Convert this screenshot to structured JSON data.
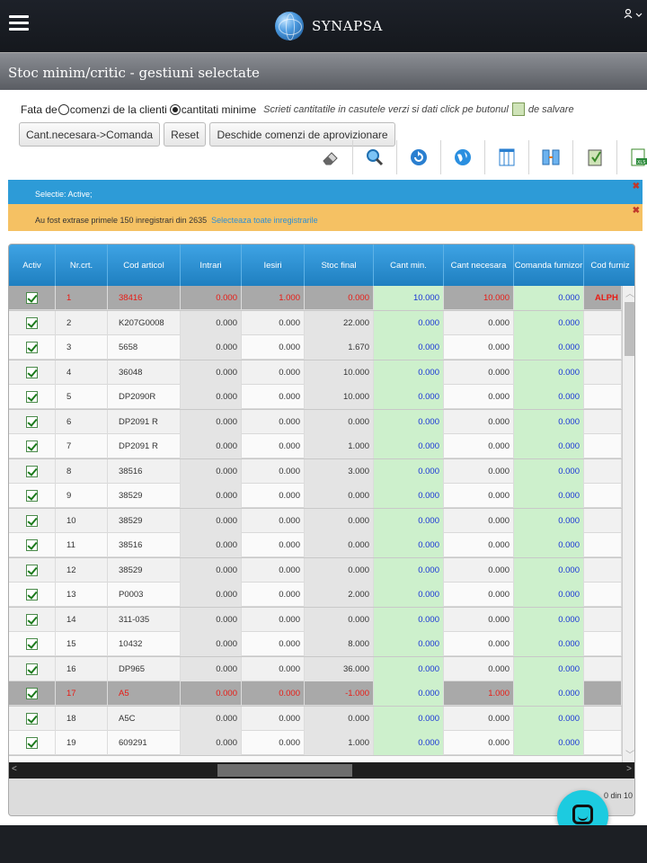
{
  "header": {
    "brand": "SYNAPSA",
    "user_icon": "user-icon",
    "menu_icon": "hamburger-icon"
  },
  "page": {
    "title": "Stoc minim/critic - gestiuni selectate"
  },
  "options": {
    "prefix": "Fata de",
    "radio_clients": "comenzi de la clienti",
    "radio_minimum": "cantitati minime",
    "selected": "cantitati minime",
    "hint_a": "Scrieti cantitatile in casutele verzi si dati click pe butonul",
    "hint_b": "de salvare"
  },
  "buttons": {
    "to_order": "Cant.necesara->Comanda",
    "reset": "Reset",
    "open_orders": "Deschide comenzi de aprovizionare"
  },
  "toolbar": [
    "eraser-icon",
    "search-icon",
    "refresh-icon",
    "globe-icon",
    "columns-icon",
    "split-icon",
    "save-icon",
    "excel-icon"
  ],
  "banners": {
    "selection": "Selectie: Active;",
    "warning": "Au fost extrase primele 150 inregistrari din 2635",
    "select_all": "Selecteaza toate inregistrarile"
  },
  "table": {
    "columns": [
      "Activ",
      "Nr.crt.",
      "Cod articol",
      "Intrari",
      "Iesiri",
      "Stoc final",
      "Cant min.",
      "Cant necesara",
      "Comanda furnizor",
      "Cod furniz"
    ],
    "rows": [
      {
        "nr": "1",
        "cod": "38416",
        "intrari": "0.000",
        "iesiri": "1.000",
        "stoc": "0.000",
        "min": "10.000",
        "nec": "10.000",
        "cmd": "0.000",
        "furn": "ALPH",
        "hl": true
      },
      {
        "nr": "2",
        "cod": "K207G0008",
        "intrari": "0.000",
        "iesiri": "0.000",
        "stoc": "22.000",
        "min": "0.000",
        "nec": "0.000",
        "cmd": "0.000",
        "furn": "",
        "hl": false
      },
      {
        "nr": "3",
        "cod": "5658",
        "intrari": "0.000",
        "iesiri": "0.000",
        "stoc": "1.670",
        "min": "0.000",
        "nec": "0.000",
        "cmd": "0.000",
        "furn": "",
        "hl": false
      },
      {
        "nr": "4",
        "cod": "36048",
        "intrari": "0.000",
        "iesiri": "0.000",
        "stoc": "10.000",
        "min": "0.000",
        "nec": "0.000",
        "cmd": "0.000",
        "furn": "",
        "hl": false
      },
      {
        "nr": "5",
        "cod": "DP2090R",
        "intrari": "0.000",
        "iesiri": "0.000",
        "stoc": "10.000",
        "min": "0.000",
        "nec": "0.000",
        "cmd": "0.000",
        "furn": "",
        "hl": false
      },
      {
        "nr": "6",
        "cod": "DP2091 R",
        "intrari": "0.000",
        "iesiri": "0.000",
        "stoc": "0.000",
        "min": "0.000",
        "nec": "0.000",
        "cmd": "0.000",
        "furn": "",
        "hl": false
      },
      {
        "nr": "7",
        "cod": "DP2091 R",
        "intrari": "0.000",
        "iesiri": "0.000",
        "stoc": "1.000",
        "min": "0.000",
        "nec": "0.000",
        "cmd": "0.000",
        "furn": "",
        "hl": false
      },
      {
        "nr": "8",
        "cod": "38516",
        "intrari": "0.000",
        "iesiri": "0.000",
        "stoc": "3.000",
        "min": "0.000",
        "nec": "0.000",
        "cmd": "0.000",
        "furn": "",
        "hl": false
      },
      {
        "nr": "9",
        "cod": "38529",
        "intrari": "0.000",
        "iesiri": "0.000",
        "stoc": "0.000",
        "min": "0.000",
        "nec": "0.000",
        "cmd": "0.000",
        "furn": "",
        "hl": false
      },
      {
        "nr": "10",
        "cod": "38529",
        "intrari": "0.000",
        "iesiri": "0.000",
        "stoc": "0.000",
        "min": "0.000",
        "nec": "0.000",
        "cmd": "0.000",
        "furn": "",
        "hl": false
      },
      {
        "nr": "11",
        "cod": "38516",
        "intrari": "0.000",
        "iesiri": "0.000",
        "stoc": "0.000",
        "min": "0.000",
        "nec": "0.000",
        "cmd": "0.000",
        "furn": "",
        "hl": false
      },
      {
        "nr": "12",
        "cod": "38529",
        "intrari": "0.000",
        "iesiri": "0.000",
        "stoc": "0.000",
        "min": "0.000",
        "nec": "0.000",
        "cmd": "0.000",
        "furn": "",
        "hl": false
      },
      {
        "nr": "13",
        "cod": "P0003",
        "intrari": "0.000",
        "iesiri": "0.000",
        "stoc": "2.000",
        "min": "0.000",
        "nec": "0.000",
        "cmd": "0.000",
        "furn": "",
        "hl": false
      },
      {
        "nr": "14",
        "cod": "311-035",
        "intrari": "0.000",
        "iesiri": "0.000",
        "stoc": "0.000",
        "min": "0.000",
        "nec": "0.000",
        "cmd": "0.000",
        "furn": "",
        "hl": false
      },
      {
        "nr": "15",
        "cod": "10432",
        "intrari": "0.000",
        "iesiri": "0.000",
        "stoc": "8.000",
        "min": "0.000",
        "nec": "0.000",
        "cmd": "0.000",
        "furn": "",
        "hl": false
      },
      {
        "nr": "16",
        "cod": "DP965",
        "intrari": "0.000",
        "iesiri": "0.000",
        "stoc": "36.000",
        "min": "0.000",
        "nec": "0.000",
        "cmd": "0.000",
        "furn": "",
        "hl": false
      },
      {
        "nr": "17",
        "cod": "A5",
        "intrari": "0.000",
        "iesiri": "0.000",
        "stoc": "-1.000",
        "min": "0.000",
        "nec": "1.000",
        "cmd": "0.000",
        "furn": "",
        "hl": true
      },
      {
        "nr": "18",
        "cod": "A5C",
        "intrari": "0.000",
        "iesiri": "0.000",
        "stoc": "0.000",
        "min": "0.000",
        "nec": "0.000",
        "cmd": "0.000",
        "furn": "",
        "hl": false
      },
      {
        "nr": "19",
        "cod": "609291",
        "intrari": "0.000",
        "iesiri": "0.000",
        "stoc": "1.000",
        "min": "0.000",
        "nec": "0.000",
        "cmd": "0.000",
        "furn": "",
        "hl": false
      }
    ]
  },
  "pager": "0 din 10",
  "colors": {
    "header_blue": "#2d9bd7",
    "warning": "#f5c163",
    "green_cell": "#cdf0cc",
    "highlight_row": "#a9a9a9",
    "chat": "#1ccbe0"
  }
}
